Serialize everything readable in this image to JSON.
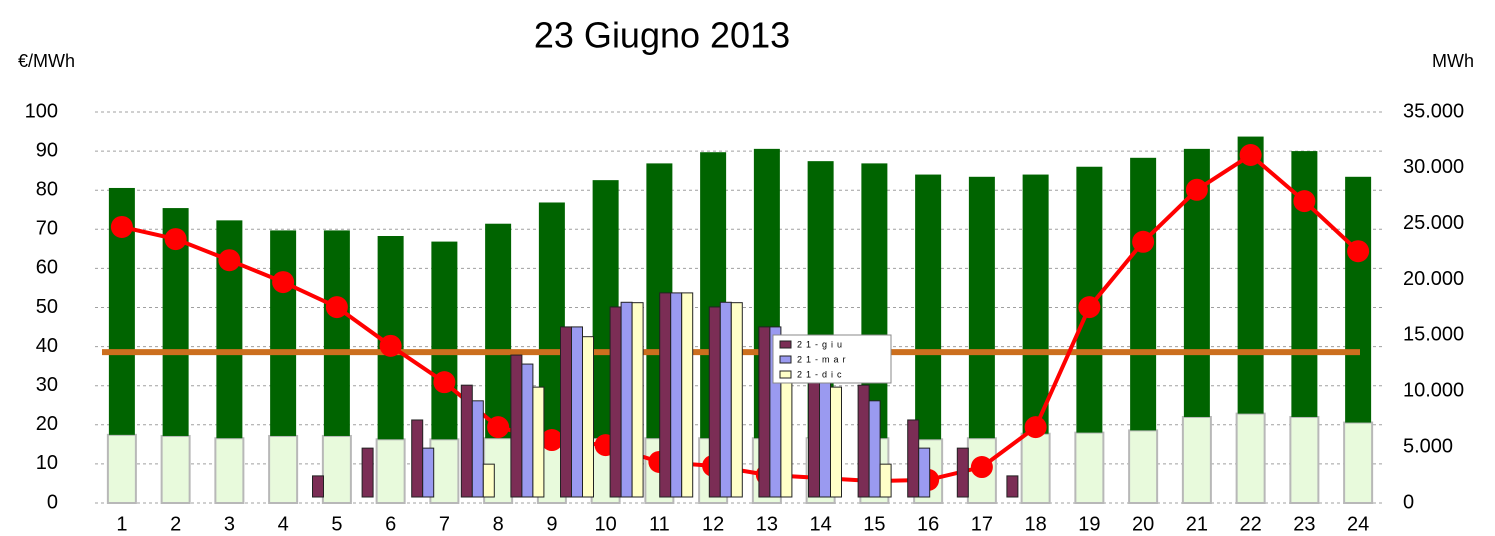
{
  "chart_data": [
    {
      "type": "bar",
      "title": "23 Giugno 2013",
      "y_label": "€/MWh",
      "y2_label": "MWh",
      "categories": [
        "1",
        "2",
        "3",
        "4",
        "5",
        "6",
        "7",
        "8",
        "9",
        "10",
        "11",
        "12",
        "13",
        "14",
        "15",
        "16",
        "17",
        "18",
        "19",
        "20",
        "21",
        "22",
        "23",
        "24"
      ],
      "ylim": [
        0,
        100
      ],
      "yticks": [
        0,
        10,
        20,
        30,
        40,
        50,
        60,
        70,
        80,
        90,
        100
      ],
      "y2lim": [
        0,
        35000
      ],
      "y2ticks": [
        0,
        {
          "value": 5000,
          "label": "5.000"
        },
        {
          "value": 10000,
          "label": "10.000"
        },
        {
          "value": 15000,
          "label": "15.000"
        },
        {
          "value": 20000,
          "label": "20.000"
        },
        {
          "value": 25000,
          "label": "25.000"
        },
        {
          "value": 30000,
          "label": "30.000"
        },
        {
          "value": 35000,
          "label": "35.000"
        }
      ],
      "grid": true,
      "stacked": true,
      "series": [
        {
          "type": "bar",
          "axis": "y2",
          "color": "#e8fadc",
          "values": [
            6100,
            6000,
            5800,
            6000,
            6000,
            5700,
            5700,
            5800,
            5900,
            5800,
            5800,
            5800,
            5800,
            5800,
            5800,
            5700,
            5800,
            6200,
            6300,
            6500,
            7700,
            8000,
            7700,
            7200
          ]
        },
        {
          "type": "bar",
          "axis": "y2",
          "color": "#006400",
          "values": [
            22100,
            20400,
            19500,
            18400,
            18400,
            18200,
            17700,
            19200,
            21000,
            23100,
            24600,
            25600,
            25900,
            24800,
            24600,
            23700,
            23400,
            23200,
            23800,
            24400,
            24000,
            24800,
            23800,
            22000
          ]
        },
        {
          "type": "line",
          "color": "#ff0000",
          "values": [
            70.6,
            67.5,
            62.1,
            56.5,
            50.1,
            40.2,
            30.9,
            19.4,
            16.1,
            14.8,
            10.5,
            9.5,
            7.2,
            6.4,
            5.6,
            5.9,
            9.2,
            19.4,
            50.1,
            66.8,
            80.1,
            89.0,
            77.2,
            64.4
          ]
        }
      ],
      "reference_line": {
        "value": 38.6,
        "color": "#cc6f1e"
      }
    },
    {
      "type": "bar",
      "ylim": [
        0,
        100
      ],
      "categories": [
        null,
        null,
        null,
        null,
        null,
        null,
        null,
        null,
        null,
        null,
        null,
        null,
        null,
        null,
        null
      ],
      "series": [
        {
          "name": "21-giu",
          "color": "#7b2d55",
          "values": [
            5.4,
            12.5,
            19.7,
            28.6,
            36.3,
            43.5,
            48.6,
            52.2,
            48.6,
            43.5,
            36.3,
            28.6,
            19.7,
            12.5,
            5.4
          ]
        },
        {
          "name": "21-mar",
          "color": "#9a9af0",
          "values": [
            null,
            null,
            12.5,
            24.6,
            34.0,
            43.5,
            49.8,
            52.2,
            49.8,
            43.5,
            34.0,
            24.6,
            12.5,
            null,
            null
          ]
        },
        {
          "name": "21-dic",
          "color": "#ffffc8",
          "values": [
            null,
            null,
            null,
            8.4,
            28.1,
            41.0,
            49.7,
            52.2,
            49.7,
            41.0,
            28.1,
            8.4,
            null,
            null,
            null
          ]
        }
      ]
    }
  ]
}
